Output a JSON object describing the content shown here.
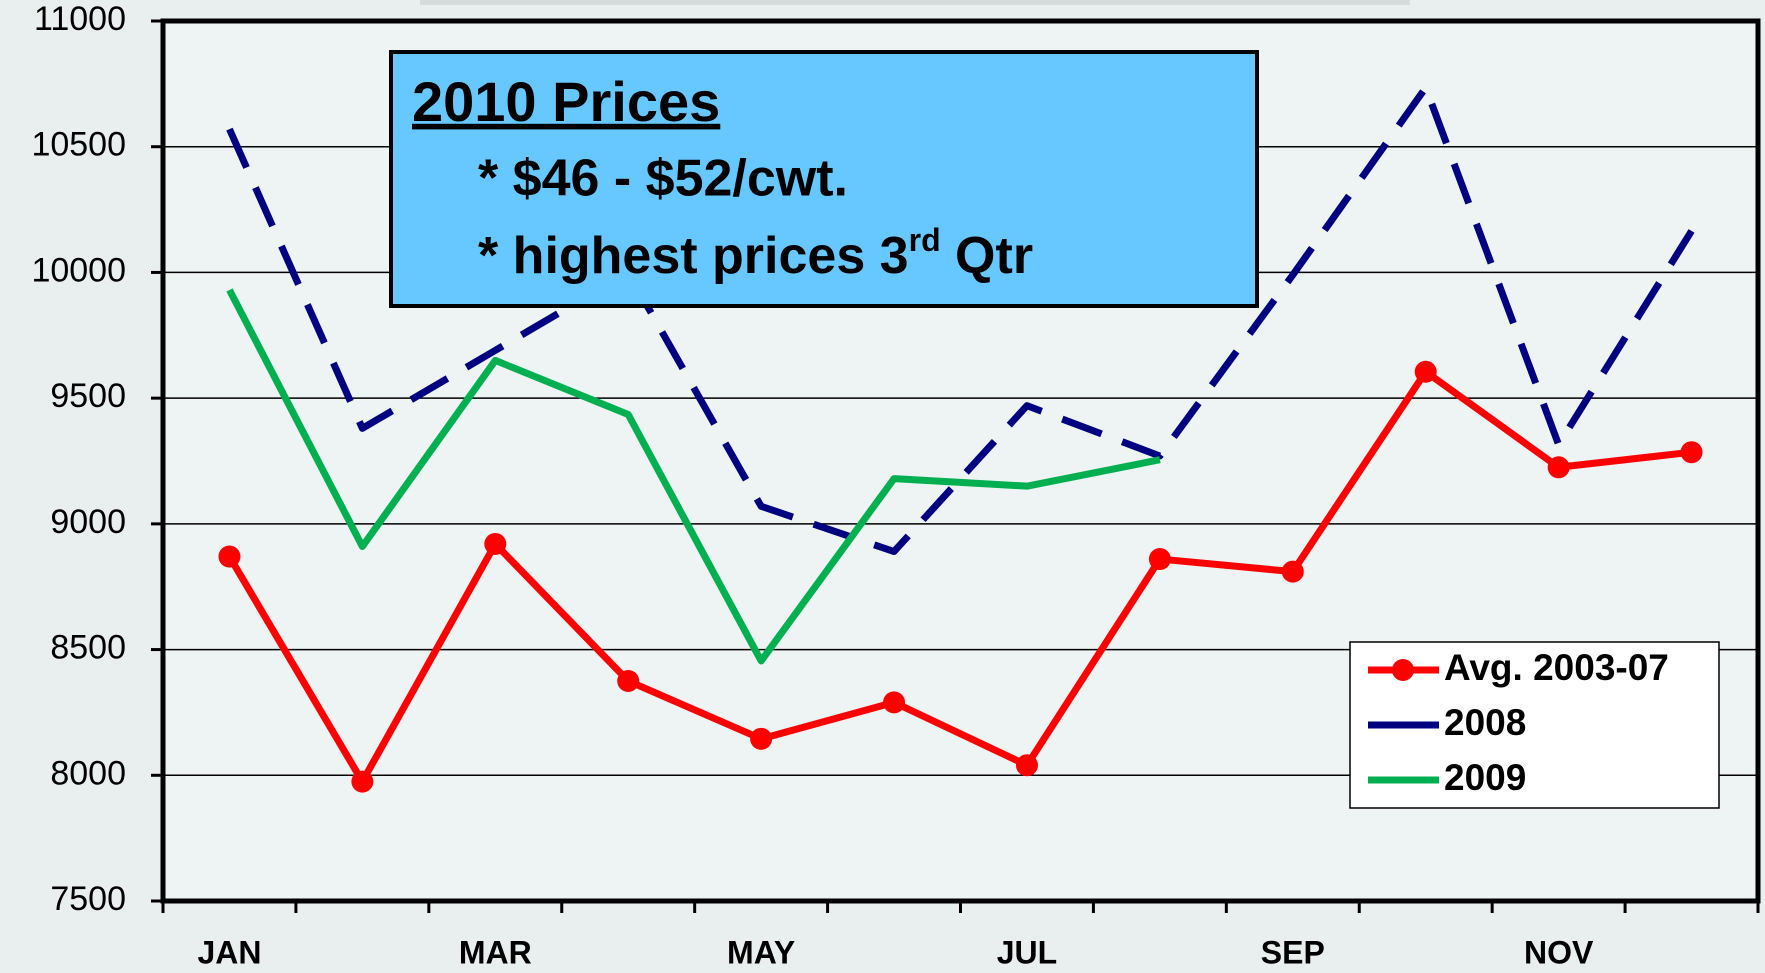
{
  "chart_data": {
    "type": "line",
    "categories": [
      "JAN",
      null,
      "MAR",
      null,
      "MAY",
      null,
      "JUL",
      null,
      "SEP",
      null,
      "NOV",
      null
    ],
    "series": [
      {
        "name": "Avg. 2003-07",
        "color": "#ff0000",
        "marker": true,
        "line_style": "solid",
        "values": [
          8870,
          7975,
          8920,
          8375,
          8145,
          8290,
          8040,
          8860,
          8810,
          9605,
          9225,
          9285
        ]
      },
      {
        "name": "2008",
        "color": "#000080",
        "marker": false,
        "line_style": "dashed",
        "values": [
          10570,
          9380,
          9690,
          10000,
          9070,
          8890,
          9470,
          9270,
          9990,
          10735,
          9315,
          10165
        ]
      },
      {
        "name": "2009",
        "color": "#00b050",
        "marker": false,
        "line_style": "solid",
        "values": [
          9930,
          8910,
          9650,
          9435,
          8455,
          9180,
          9150,
          9255,
          null,
          null,
          null,
          null
        ]
      }
    ],
    "ylim": [
      7500,
      11000
    ],
    "yticks": [
      7500,
      8000,
      8500,
      9000,
      9500,
      10000,
      10500,
      11000
    ],
    "grid": true,
    "legend": "lower right",
    "annotation": {
      "title": "2010 Prices",
      "lines": [
        [
          "* $46 - $52/cwt."
        ],
        [
          "* highest prices 3",
          "rd",
          " Qtr"
        ]
      ]
    }
  }
}
